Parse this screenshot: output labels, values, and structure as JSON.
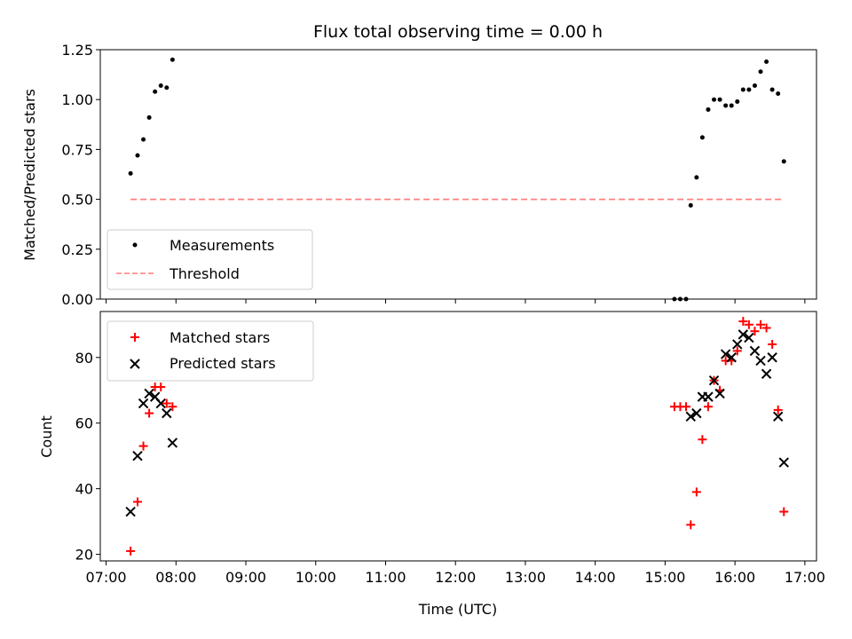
{
  "chart_data": {
    "title": "Flux total observing time = 0.00 h",
    "xlabel": "Time (UTC)",
    "x_ticks": [
      "07:00",
      "08:00",
      "09:00",
      "10:00",
      "11:00",
      "12:00",
      "13:00",
      "14:00",
      "15:00",
      "16:00",
      "17:00"
    ],
    "xlim": [
      "06:55",
      "17:10"
    ],
    "panels": [
      {
        "type": "scatter",
        "ylabel": "Matched/Predicted stars",
        "ylim": [
          0,
          1.25
        ],
        "y_ticks": [
          "0.00",
          "0.25",
          "0.50",
          "0.75",
          "1.00",
          "1.25"
        ],
        "legend_position": "lower-left",
        "series": [
          {
            "name": "Measurements",
            "marker": "dot",
            "color": "#000000",
            "points": [
              [
                "07:21",
                0.63
              ],
              [
                "07:27",
                0.72
              ],
              [
                "07:32",
                0.8
              ],
              [
                "07:37",
                0.91
              ],
              [
                "07:42",
                1.04
              ],
              [
                "07:47",
                1.07
              ],
              [
                "07:52",
                1.06
              ],
              [
                "07:57",
                1.2
              ],
              [
                "15:08",
                0.0
              ],
              [
                "15:13",
                0.0
              ],
              [
                "15:18",
                0.0
              ],
              [
                "15:22",
                0.47
              ],
              [
                "15:27",
                0.61
              ],
              [
                "15:32",
                0.81
              ],
              [
                "15:37",
                0.95
              ],
              [
                "15:42",
                1.0
              ],
              [
                "15:47",
                1.0
              ],
              [
                "15:52",
                0.97
              ],
              [
                "15:57",
                0.97
              ],
              [
                "16:02",
                0.99
              ],
              [
                "16:07",
                1.05
              ],
              [
                "16:12",
                1.05
              ],
              [
                "16:17",
                1.07
              ],
              [
                "16:22",
                1.14
              ],
              [
                "16:27",
                1.19
              ],
              [
                "16:32",
                1.05
              ],
              [
                "16:37",
                1.03
              ],
              [
                "16:42",
                0.69
              ]
            ]
          },
          {
            "name": "Threshold",
            "style": "dashed-line",
            "color": "#ff7f7f",
            "points": [
              [
                "07:21",
                0.5
              ],
              [
                "16:42",
                0.5
              ]
            ]
          }
        ]
      },
      {
        "type": "scatter",
        "ylabel": "Count",
        "ylim": [
          18,
          94
        ],
        "y_ticks": [
          "20",
          "40",
          "60",
          "80"
        ],
        "legend_position": "upper-left",
        "series": [
          {
            "name": "Matched stars",
            "marker": "plus",
            "color": "#ff0000",
            "points": [
              [
                "07:21",
                21
              ],
              [
                "07:27",
                36
              ],
              [
                "07:32",
                53
              ],
              [
                "07:37",
                63
              ],
              [
                "07:42",
                71
              ],
              [
                "07:47",
                71
              ],
              [
                "07:52",
                66
              ],
              [
                "07:57",
                65
              ],
              [
                "15:08",
                65
              ],
              [
                "15:13",
                65
              ],
              [
                "15:18",
                65
              ],
              [
                "15:22",
                29
              ],
              [
                "15:27",
                39
              ],
              [
                "15:32",
                55
              ],
              [
                "15:37",
                65
              ],
              [
                "15:42",
                73
              ],
              [
                "15:47",
                70
              ],
              [
                "15:52",
                79
              ],
              [
                "15:57",
                79
              ],
              [
                "16:02",
                82
              ],
              [
                "16:07",
                91
              ],
              [
                "16:12",
                90
              ],
              [
                "16:17",
                88
              ],
              [
                "16:22",
                90
              ],
              [
                "16:27",
                89
              ],
              [
                "16:32",
                84
              ],
              [
                "16:37",
                64
              ],
              [
                "16:42",
                33
              ]
            ]
          },
          {
            "name": "Predicted stars",
            "marker": "x",
            "color": "#000000",
            "points": [
              [
                "07:21",
                33
              ],
              [
                "07:27",
                50
              ],
              [
                "07:32",
                66
              ],
              [
                "07:37",
                69
              ],
              [
                "07:42",
                68
              ],
              [
                "07:47",
                66
              ],
              [
                "07:52",
                63
              ],
              [
                "07:57",
                54
              ],
              [
                "15:22",
                62
              ],
              [
                "15:27",
                63
              ],
              [
                "15:32",
                68
              ],
              [
                "15:37",
                68
              ],
              [
                "15:42",
                73
              ],
              [
                "15:47",
                69
              ],
              [
                "15:52",
                81
              ],
              [
                "15:57",
                80
              ],
              [
                "16:02",
                84
              ],
              [
                "16:07",
                87
              ],
              [
                "16:12",
                86
              ],
              [
                "16:17",
                82
              ],
              [
                "16:22",
                79
              ],
              [
                "16:27",
                75
              ],
              [
                "16:32",
                80
              ],
              [
                "16:37",
                62
              ],
              [
                "16:42",
                48
              ]
            ]
          }
        ]
      }
    ]
  }
}
